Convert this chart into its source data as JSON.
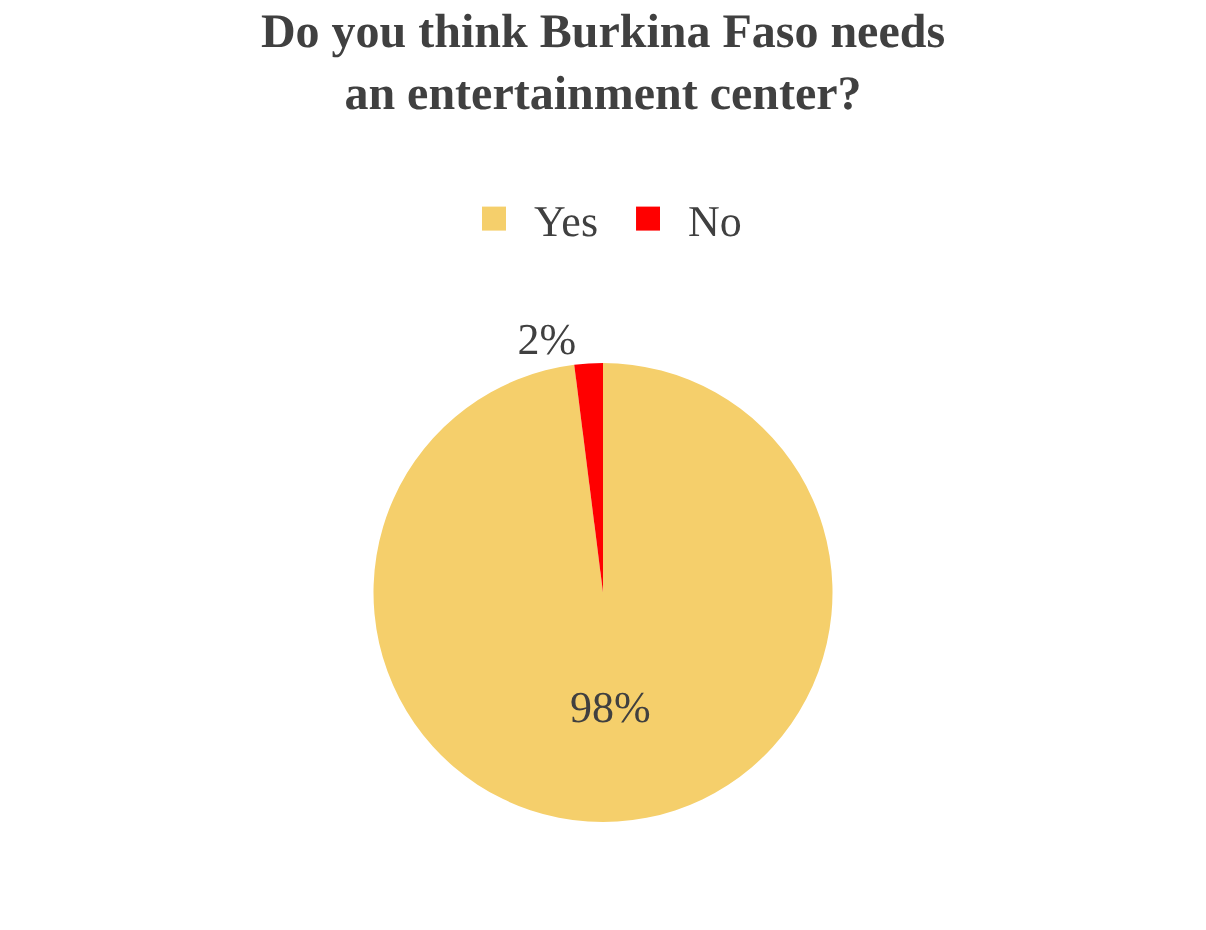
{
  "chart_data": {
    "type": "pie",
    "title": "Do you think Burkina Faso needs an entertainment center?",
    "categories": [
      "Yes",
      "No"
    ],
    "values": [
      98,
      2
    ],
    "colors": [
      "#f5cf6b",
      "#ff0000"
    ],
    "value_labels": [
      "98%",
      "2%"
    ],
    "legend": "top"
  }
}
